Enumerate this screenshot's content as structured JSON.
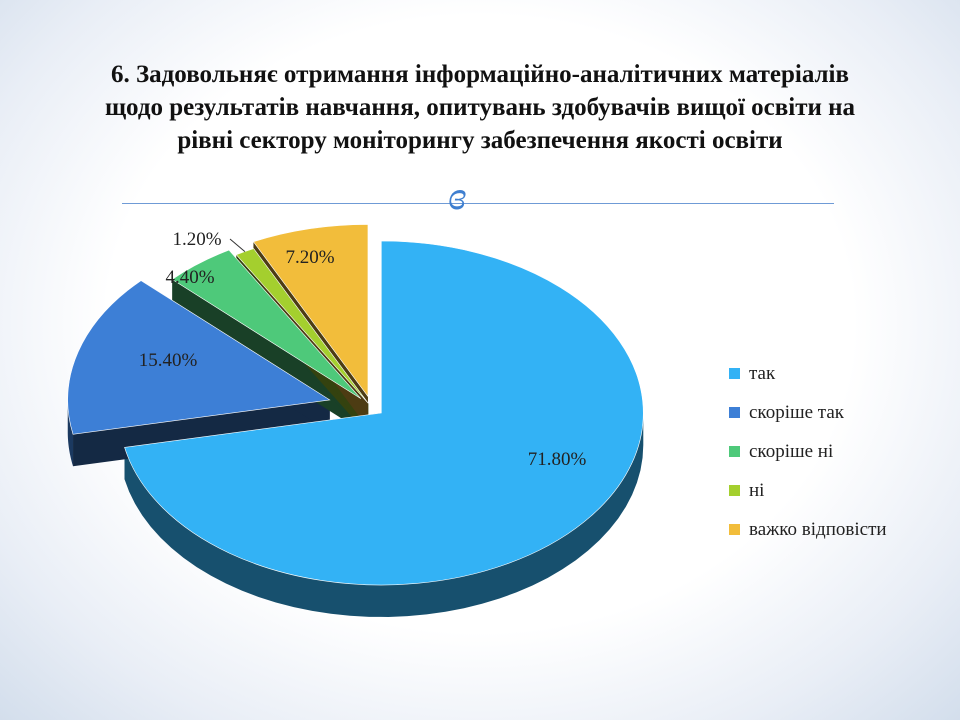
{
  "title": "6. Задовольняє отримання інформаційно-аналітичних матеріалів щодо результатів навчання, опитувань здобувачів вищої освіти на рівні сектору моніторингу забезпечення якості освіти",
  "ornament_glyph": "ɞ",
  "chart_data": {
    "type": "pie",
    "style": "3d-exploded",
    "legend_position": "right",
    "slices": [
      {
        "label": "так",
        "value": 71.8,
        "value_label": "71.80%",
        "color": "#33b2f5"
      },
      {
        "label": "скоріше так",
        "value": 15.4,
        "value_label": "15.40%",
        "color": "#3d7fd6"
      },
      {
        "label": "скоріше ні",
        "value": 4.4,
        "value_label": "4.40%",
        "color": "#4ec97a"
      },
      {
        "label": "ні",
        "value": 1.2,
        "value_label": "1.20%",
        "color": "#a4cf2e"
      },
      {
        "label": "важко відповісти",
        "value": 7.2,
        "value_label": "7.20%",
        "color": "#f2bd3b"
      }
    ]
  }
}
